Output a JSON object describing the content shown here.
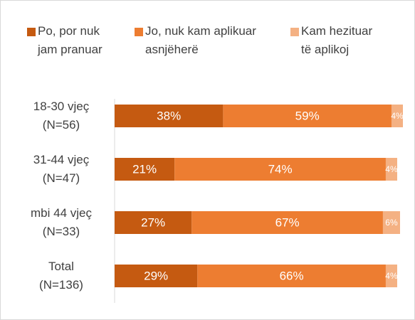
{
  "chart_data": {
    "type": "stacked-barh",
    "categories": [
      "18-30 vjeç\n(N=56)",
      "31-44 vjeç\n(N=47)",
      "mbi 44 vjeç\n(N=33)",
      "Total\n(N=136)"
    ],
    "series": [
      {
        "name": "Po, por nuk\njam pranuar",
        "color": "#c55a11",
        "values": [
          38,
          21,
          27,
          29
        ],
        "value_labels": [
          "38%",
          "21%",
          "27%",
          "29%"
        ]
      },
      {
        "name": "Jo, nuk kam aplikuar\nasnjëherë",
        "color": "#ed7d31",
        "values": [
          59,
          74,
          67,
          66
        ],
        "value_labels": [
          "59%",
          "74%",
          "67%",
          "66%"
        ]
      },
      {
        "name": "Kam hezituar\ntë aplikoj",
        "color": "#f4b183",
        "values": [
          4,
          4,
          6,
          4
        ],
        "value_labels": [
          "4%",
          "4%",
          "6%",
          "4%"
        ]
      }
    ],
    "xlim": [
      0,
      100
    ],
    "legend": "top"
  }
}
